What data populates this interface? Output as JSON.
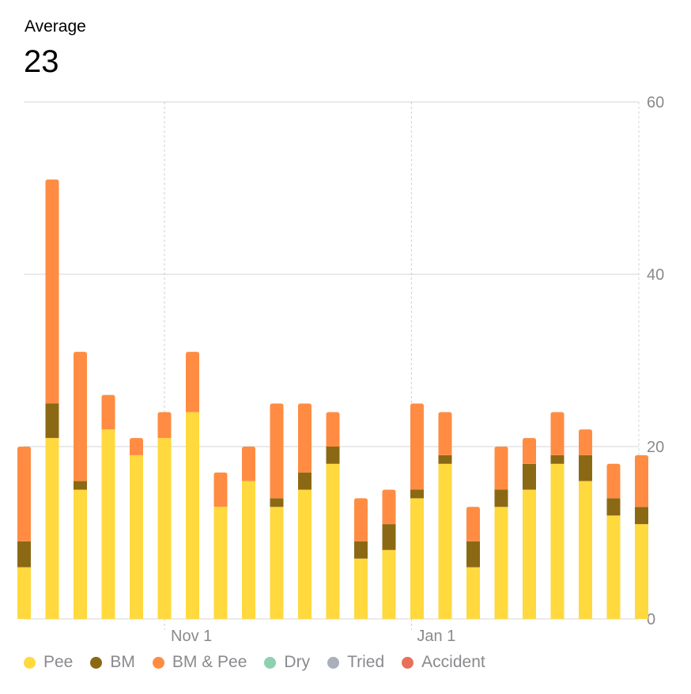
{
  "header": {
    "label": "Average",
    "value": "23"
  },
  "colors": {
    "pee": "#FFD93D",
    "bm": "#8B6914",
    "bm_pee": "#FF8C42",
    "dry": "#8ED1B0",
    "tried": "#A9AFBB",
    "accident": "#E8705A"
  },
  "chart_data": {
    "type": "bar",
    "stacked": true,
    "title": "",
    "xlabel": "",
    "ylabel": "",
    "ylim": [
      0,
      60
    ],
    "y_ticks": [
      0,
      20,
      40,
      60
    ],
    "x_tick_labels": [
      "Nov 1",
      "Jan 1"
    ],
    "grid": true,
    "legend_position": "bottom",
    "series": [
      {
        "name": "Pee",
        "color": "#FFD93D",
        "values": [
          6,
          21,
          15,
          22,
          19,
          21,
          24,
          13,
          16,
          13,
          15,
          18,
          7,
          8,
          14,
          18,
          6,
          13,
          15,
          18,
          16,
          12,
          11
        ]
      },
      {
        "name": "BM",
        "color": "#8B6914",
        "values": [
          3,
          4,
          1,
          0,
          0,
          0,
          0,
          0,
          0,
          1,
          2,
          2,
          2,
          3,
          1,
          1,
          3,
          2,
          3,
          1,
          3,
          2,
          2
        ]
      },
      {
        "name": "BM & Pee",
        "color": "#FF8C42",
        "values": [
          11,
          26,
          15,
          4,
          2,
          3,
          7,
          4,
          4,
          11,
          8,
          4,
          5,
          4,
          10,
          5,
          4,
          5,
          3,
          5,
          3,
          4,
          6
        ]
      },
      {
        "name": "Dry",
        "color": "#8ED1B0",
        "values": [
          0,
          0,
          0,
          0,
          0,
          0,
          0,
          0,
          0,
          0,
          0,
          0,
          0,
          0,
          0,
          0,
          0,
          0,
          0,
          0,
          0,
          0,
          0
        ]
      },
      {
        "name": "Tried",
        "color": "#A9AFBB",
        "values": [
          0,
          0,
          0,
          0,
          0,
          0,
          0,
          0,
          0,
          0,
          0,
          0,
          0,
          0,
          0,
          0,
          0,
          0,
          0,
          0,
          0,
          0,
          0
        ]
      },
      {
        "name": "Accident",
        "color": "#E8705A",
        "values": [
          0,
          0,
          0,
          0,
          0,
          0,
          0,
          0,
          0,
          0,
          0,
          0,
          0,
          0,
          0,
          0,
          0,
          0,
          0,
          0,
          0,
          0,
          0
        ]
      }
    ]
  }
}
